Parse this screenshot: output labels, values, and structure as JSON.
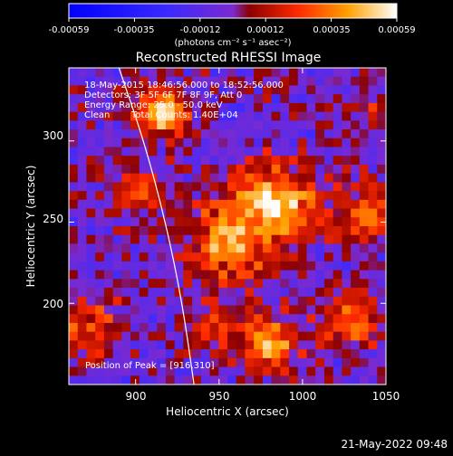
{
  "colorbar": {
    "ticks": [
      "-0.00059",
      "-0.00035",
      "-0.00012",
      "0.00012",
      "0.00035",
      "0.00059"
    ],
    "unit_label": "(photons cm⁻² s⁻¹ asec⁻²)",
    "range": [
      -0.00059,
      0.00059
    ]
  },
  "timestamp": "21-May-2022 09:48",
  "chart_data": {
    "type": "heatmap",
    "title": "Reconstructed RHESSI Image",
    "xlabel": "Heliocentric X (arcsec)",
    "ylabel": "Heliocentric Y (arcsec)",
    "xlim": [
      860,
      1050
    ],
    "ylim": [
      150,
      345
    ],
    "x_ticks": [
      900,
      950,
      1000,
      1050
    ],
    "y_ticks": [
      200,
      250,
      300
    ],
    "y_tick_labels": [
      "200",
      "250",
      "300"
    ],
    "x_tick_labels": [
      "900",
      "950",
      "1000",
      "1050"
    ],
    "annotations": [
      "18-May-2015 18:46:56.000 to 18:52:56.000",
      "Detectors: 3F 5F 6F 7F 8F 9F, Att 0",
      "Energy Range: 25.0 - 50.0 keV",
      "Clean",
      "Total Counts: 1.40E+04"
    ],
    "peak_label": "Position of Peak = [916,310]",
    "peak": [
      916,
      310
    ],
    "sources": [
      {
        "x": 916,
        "y": 318,
        "sigma": 10,
        "amp": 1.0
      },
      {
        "x": 900,
        "y": 270,
        "sigma": 8,
        "amp": 0.55
      },
      {
        "x": 985,
        "y": 262,
        "sigma": 16,
        "amp": 0.85
      },
      {
        "x": 955,
        "y": 236,
        "sigma": 18,
        "amp": 0.65
      },
      {
        "x": 1040,
        "y": 255,
        "sigma": 12,
        "amp": 0.6
      },
      {
        "x": 980,
        "y": 175,
        "sigma": 12,
        "amp": 0.7
      },
      {
        "x": 870,
        "y": 185,
        "sigma": 14,
        "amp": 0.45
      },
      {
        "x": 1030,
        "y": 190,
        "sigma": 12,
        "amp": 0.55
      },
      {
        "x": 945,
        "y": 182,
        "sigma": 10,
        "amp": 0.4
      },
      {
        "x": 1040,
        "y": 320,
        "sigma": 10,
        "amp": 0.3
      }
    ],
    "limb_curve": {
      "description": "solar limb",
      "points": [
        [
          890,
          345
        ],
        [
          905,
          300
        ],
        [
          918,
          250
        ],
        [
          928,
          200
        ],
        [
          935,
          150
        ]
      ]
    },
    "grid": false
  }
}
